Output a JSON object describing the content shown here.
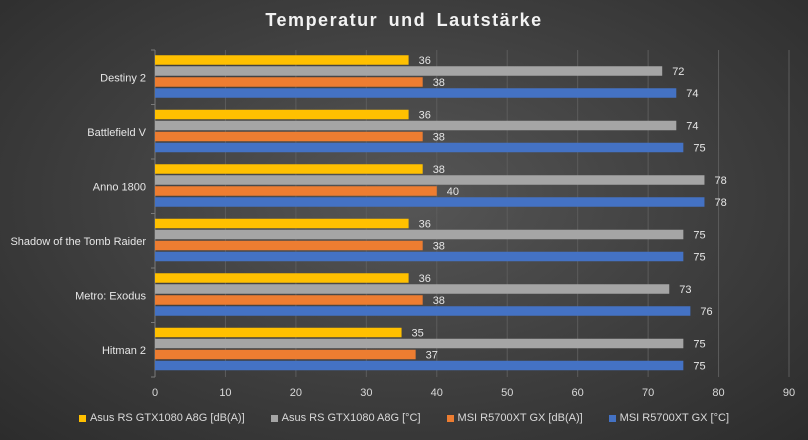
{
  "chart_data": {
    "type": "bar",
    "orientation": "horizontal",
    "title": "Temperatur  und  Lautstärke",
    "categories": [
      "Destiny 2",
      "Battlefield V",
      "Anno 1800",
      "Shadow of the Tomb Raider",
      "Metro: Exodus",
      "Hitman 2"
    ],
    "series": [
      {
        "name": "Asus RS GTX1080 A8G [dB(A)]",
        "color": "#ffc000",
        "values": [
          36,
          36,
          38,
          36,
          36,
          35
        ]
      },
      {
        "name": "Asus RS GTX1080 A8G [°C]",
        "color": "#a5a5a5",
        "values": [
          72,
          74,
          78,
          75,
          73,
          75
        ]
      },
      {
        "name": "MSI R5700XT GX [dB(A)]",
        "color": "#ed7d31",
        "values": [
          38,
          38,
          40,
          38,
          38,
          37
        ]
      },
      {
        "name": "MSI R5700XT GX [°C]",
        "color": "#4472c4",
        "values": [
          74,
          75,
          78,
          75,
          76,
          75
        ]
      }
    ],
    "xlim": [
      0,
      90
    ],
    "x_ticks": [
      0,
      10,
      20,
      30,
      40,
      50,
      60,
      70,
      80,
      90
    ],
    "grid": true,
    "legend_position": "bottom",
    "data_labels": true
  }
}
